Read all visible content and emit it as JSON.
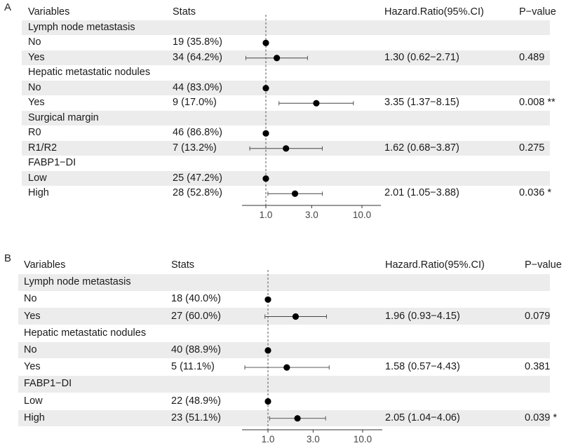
{
  "panels": [
    {
      "letter": "A",
      "headers": {
        "variables": "Variables",
        "stats": "Stats",
        "hr": "Hazard.Ratio(95%.CI)",
        "p": "P−value"
      },
      "rows": [
        {
          "label": "Lymph node metastasis",
          "group": true,
          "shaded": true
        },
        {
          "label": "No",
          "stats": "19 (35.8%)",
          "shaded": false,
          "hr": 1.0,
          "lo": null,
          "hi": null,
          "hr_text": "",
          "p_text": ""
        },
        {
          "label": "Yes",
          "stats": "34 (64.2%)",
          "shaded": true,
          "hr": 1.3,
          "lo": 0.62,
          "hi": 2.71,
          "hr_text": "1.30 (0.62−2.71)",
          "p_text": "0.489"
        },
        {
          "label": "Hepatic metastatic nodules",
          "group": true,
          "shaded": false
        },
        {
          "label": "No",
          "stats": "44 (83.0%)",
          "shaded": true,
          "hr": 1.0,
          "lo": null,
          "hi": null,
          "hr_text": "",
          "p_text": ""
        },
        {
          "label": "Yes",
          "stats": "9 (17.0%)",
          "shaded": false,
          "hr": 3.35,
          "lo": 1.37,
          "hi": 8.15,
          "hr_text": "3.35 (1.37−8.15)",
          "p_text": "0.008 **"
        },
        {
          "label": "Surgical margin",
          "group": true,
          "shaded": true
        },
        {
          "label": "R0",
          "stats": "46 (86.8%)",
          "shaded": false,
          "hr": 1.0,
          "lo": null,
          "hi": null,
          "hr_text": "",
          "p_text": ""
        },
        {
          "label": "R1/R2",
          "stats": "7 (13.2%)",
          "shaded": true,
          "hr": 1.62,
          "lo": 0.68,
          "hi": 3.87,
          "hr_text": "1.62 (0.68−3.87)",
          "p_text": "0.275"
        },
        {
          "label": "FABP1−DI",
          "group": true,
          "shaded": false
        },
        {
          "label": "Low",
          "stats": "25 (47.2%)",
          "shaded": true,
          "hr": 1.0,
          "lo": null,
          "hi": null,
          "hr_text": "",
          "p_text": ""
        },
        {
          "label": "High",
          "stats": "28 (52.8%)",
          "shaded": false,
          "hr": 2.01,
          "lo": 1.05,
          "hi": 3.88,
          "hr_text": "2.01 (1.05−3.88)",
          "p_text": "0.036 *"
        }
      ],
      "ticks": [
        "1.0",
        "3.0",
        "10.0"
      ]
    },
    {
      "letter": "B",
      "headers": {
        "variables": "Variables",
        "stats": "Stats",
        "hr": "Hazard.Ratio(95%.CI)",
        "p": "P−value"
      },
      "rows": [
        {
          "label": "Lymph node metastasis",
          "group": true,
          "shaded": true
        },
        {
          "label": "No",
          "stats": "18 (40.0%)",
          "shaded": false,
          "hr": 1.0,
          "lo": null,
          "hi": null,
          "hr_text": "",
          "p_text": ""
        },
        {
          "label": "Yes",
          "stats": "27 (60.0%)",
          "shaded": true,
          "hr": 1.96,
          "lo": 0.93,
          "hi": 4.15,
          "hr_text": "1.96 (0.93−4.15)",
          "p_text": "0.079"
        },
        {
          "label": "Hepatic metastatic nodules",
          "group": true,
          "shaded": false
        },
        {
          "label": "No",
          "stats": "40 (88.9%)",
          "shaded": true,
          "hr": 1.0,
          "lo": null,
          "hi": null,
          "hr_text": "",
          "p_text": ""
        },
        {
          "label": "Yes",
          "stats": "5 (11.1%)",
          "shaded": false,
          "hr": 1.58,
          "lo": 0.57,
          "hi": 4.43,
          "hr_text": "1.58 (0.57−4.43)",
          "p_text": "0.381"
        },
        {
          "label": "FABP1−DI",
          "group": true,
          "shaded": true
        },
        {
          "label": "Low",
          "stats": "22 (48.9%)",
          "shaded": false,
          "hr": 1.0,
          "lo": null,
          "hi": null,
          "hr_text": "",
          "p_text": ""
        },
        {
          "label": "High",
          "stats": "23 (51.1%)",
          "shaded": true,
          "hr": 2.05,
          "lo": 1.04,
          "hi": 4.06,
          "hr_text": "2.05 (1.04−4.06)",
          "p_text": "0.039 *"
        }
      ],
      "ticks": [
        "1.0",
        "3.0",
        "10.0"
      ]
    }
  ],
  "chart_data": [
    {
      "type": "forest",
      "x_scale": "log",
      "reference_line": 1.0,
      "ticks": [
        1.0,
        3.0,
        10.0
      ],
      "columns": [
        "Variables",
        "Stats",
        "Hazard.Ratio(95%.CI)",
        "P−value"
      ],
      "points": [
        {
          "group": "Lymph node metastasis",
          "level": "No",
          "n": "19 (35.8%)",
          "hr": 1.0
        },
        {
          "group": "Lymph node metastasis",
          "level": "Yes",
          "n": "34 (64.2%)",
          "hr": 1.3,
          "ci": [
            0.62,
            2.71
          ],
          "p": "0.489"
        },
        {
          "group": "Hepatic metastatic nodules",
          "level": "No",
          "n": "44 (83.0%)",
          "hr": 1.0
        },
        {
          "group": "Hepatic metastatic nodules",
          "level": "Yes",
          "n": "9 (17.0%)",
          "hr": 3.35,
          "ci": [
            1.37,
            8.15
          ],
          "p": "0.008 **"
        },
        {
          "group": "Surgical margin",
          "level": "R0",
          "n": "46 (86.8%)",
          "hr": 1.0
        },
        {
          "group": "Surgical margin",
          "level": "R1/R2",
          "n": "7 (13.2%)",
          "hr": 1.62,
          "ci": [
            0.68,
            3.87
          ],
          "p": "0.275"
        },
        {
          "group": "FABP1−DI",
          "level": "Low",
          "n": "25 (47.2%)",
          "hr": 1.0
        },
        {
          "group": "FABP1−DI",
          "level": "High",
          "n": "28 (52.8%)",
          "hr": 2.01,
          "ci": [
            1.05,
            3.88
          ],
          "p": "0.036 *"
        }
      ]
    },
    {
      "type": "forest",
      "x_scale": "log",
      "reference_line": 1.0,
      "ticks": [
        1.0,
        3.0,
        10.0
      ],
      "columns": [
        "Variables",
        "Stats",
        "Hazard.Ratio(95%.CI)",
        "P−value"
      ],
      "points": [
        {
          "group": "Lymph node metastasis",
          "level": "No",
          "n": "18 (40.0%)",
          "hr": 1.0
        },
        {
          "group": "Lymph node metastasis",
          "level": "Yes",
          "n": "27 (60.0%)",
          "hr": 1.96,
          "ci": [
            0.93,
            4.15
          ],
          "p": "0.079"
        },
        {
          "group": "Hepatic metastatic nodules",
          "level": "No",
          "n": "40 (88.9%)",
          "hr": 1.0
        },
        {
          "group": "Hepatic metastatic nodules",
          "level": "Yes",
          "n": "5 (11.1%)",
          "hr": 1.58,
          "ci": [
            0.57,
            4.43
          ],
          "p": "0.381"
        },
        {
          "group": "FABP1−DI",
          "level": "Low",
          "n": "22 (48.9%)",
          "hr": 1.0
        },
        {
          "group": "FABP1−DI",
          "level": "High",
          "n": "23 (51.1%)",
          "hr": 2.05,
          "ci": [
            1.04,
            4.06
          ],
          "p": "0.039 *"
        }
      ]
    }
  ]
}
